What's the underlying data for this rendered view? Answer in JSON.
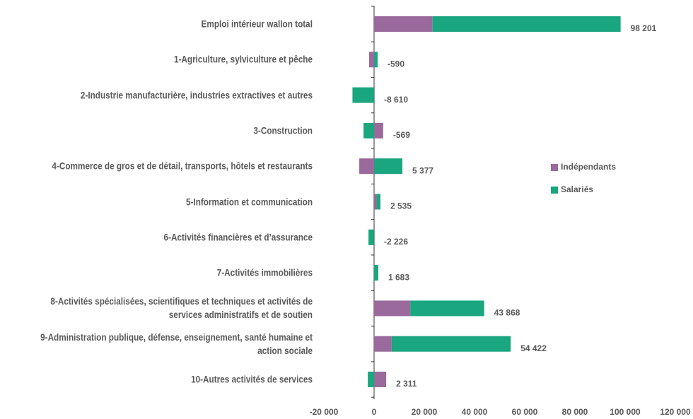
{
  "chart_data": {
    "type": "stacked-bar-horizontal",
    "categories": [
      "Emploi intérieur wallon total",
      "1-Agriculture, sylviculture et pêche",
      "2-Industrie manufacturière, industries extractives et autres",
      "3-Construction",
      "4-Commerce de gros et de détail, transports, hôtels et restaurants",
      "5-Information et communication",
      "6-Activités financières et d’assurance",
      "7-Activités immobilières",
      "8-Activités spécialisées, scientifiques et techniques et activités de services administratifs et de soutien",
      "9-Administration publique, défense, enseignement, santé humaine et action sociale",
      "10-Autres activités de services"
    ],
    "series": [
      {
        "name": "Indépendants",
        "color": "#9a6a9c",
        "values": [
          23300,
          -2000,
          0,
          3631,
          -5900,
          1000,
          -26,
          0,
          14400,
          7000,
          4811
        ]
      },
      {
        "name": "Salariés",
        "color": "#1aa67e",
        "values": [
          74901,
          1410,
          -8610,
          -4200,
          11277,
          1535,
          -2200,
          1683,
          29468,
          47422,
          -2500
        ]
      }
    ],
    "totals": {
      "values": [
        98201,
        -590,
        -8610,
        -569,
        5377,
        2535,
        -2226,
        1683,
        43868,
        54422,
        2311
      ],
      "value_labels": [
        "98 201",
        "-590",
        "-8 610",
        "-569",
        "5 377",
        "2 535",
        "-2 226",
        "1 683",
        "43 868",
        "54 422",
        "2 311"
      ]
    },
    "xlim": [
      -20000,
      120000
    ],
    "xticks": [
      {
        "value": -20000,
        "label": "-20 000"
      },
      0,
      {
        "value": 20000,
        "label": "20 000"
      },
      {
        "value": 40000,
        "label": "40 000"
      },
      {
        "value": 60000,
        "label": "60 000"
      },
      {
        "value": 80000,
        "label": "80 000"
      },
      {
        "value": 100000,
        "label": "100 000"
      },
      {
        "value": 120000,
        "label": "120 000"
      }
    ],
    "legend": "right"
  }
}
